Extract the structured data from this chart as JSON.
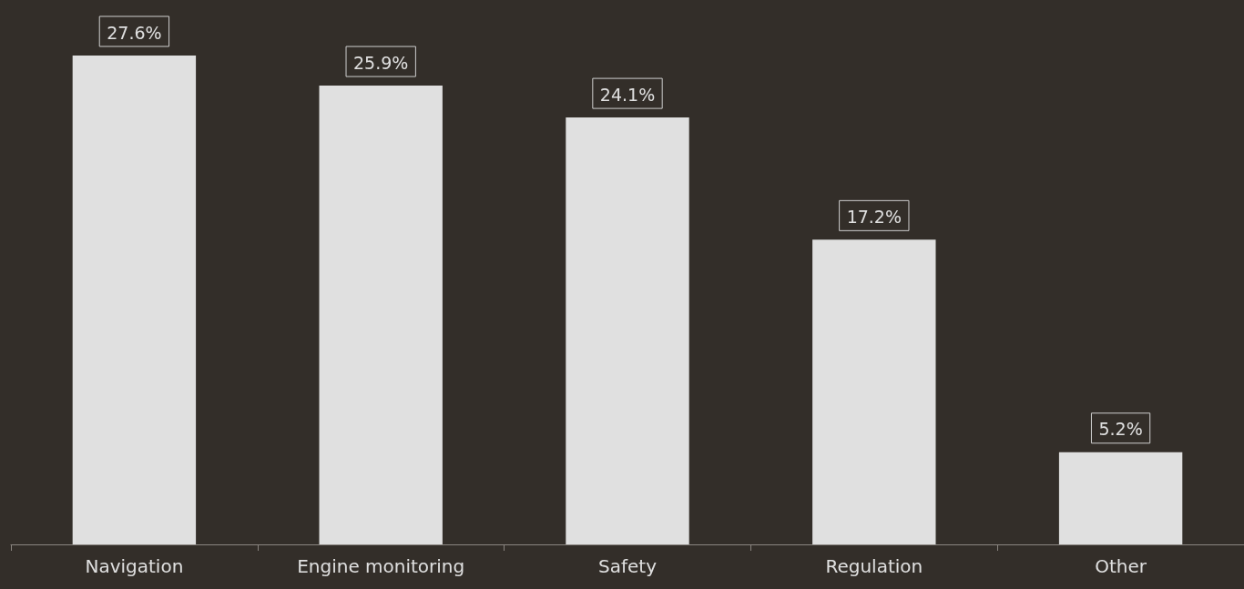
{
  "chart_data": {
    "type": "bar",
    "categories": [
      "Navigation",
      "Engine monitoring",
      "Safety",
      "Regulation",
      "Other"
    ],
    "values": [
      27.6,
      25.9,
      24.1,
      17.2,
      5.2
    ],
    "value_labels": [
      "27.6%",
      "25.9%",
      "24.1%",
      "17.2%",
      "5.2%"
    ],
    "color": "#e0e0e0"
  }
}
